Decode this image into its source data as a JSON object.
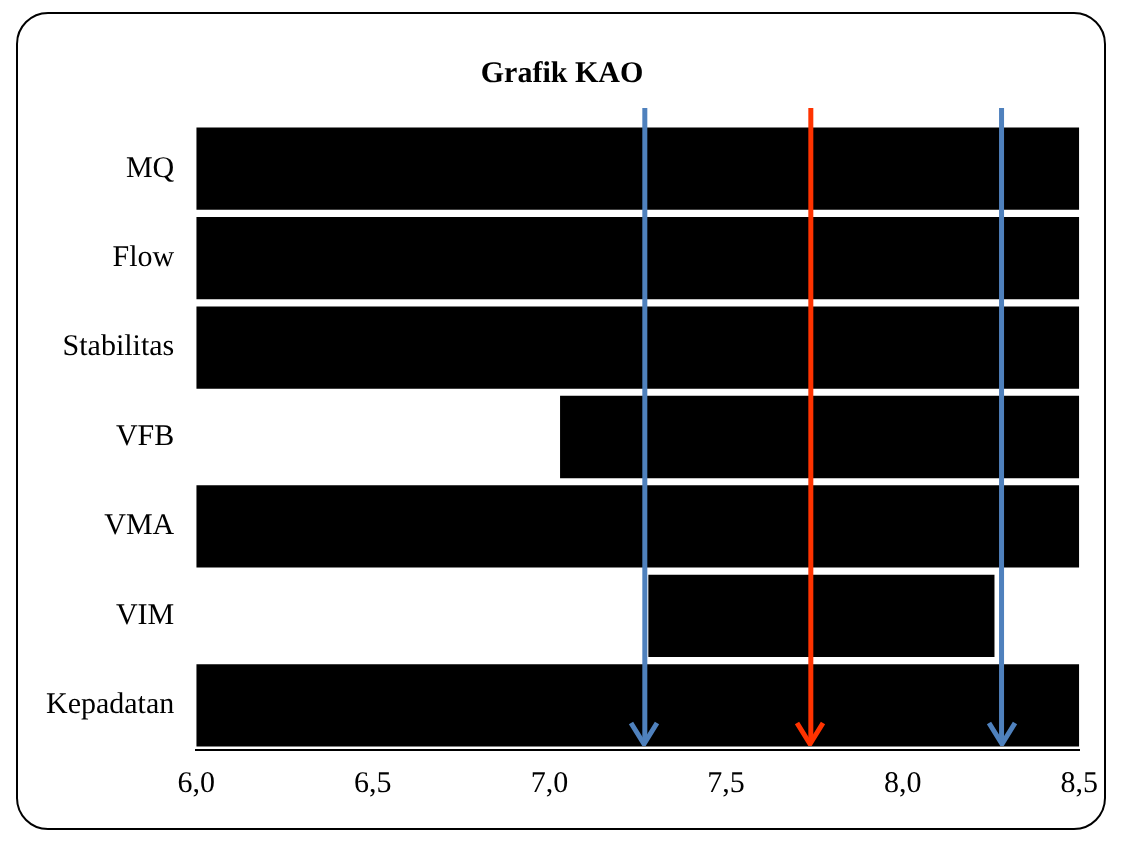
{
  "chart_data": {
    "type": "bar",
    "orientation": "horizontal",
    "title": "Grafik KAO",
    "categories": [
      "MQ",
      "Flow",
      "Stabilitas",
      "VFB",
      "VMA",
      "VIM",
      "Kepadatan"
    ],
    "base": [
      6.0,
      6.0,
      6.0,
      7.03,
      6.0,
      7.28,
      6.0
    ],
    "values": [
      2.5,
      2.5,
      2.5,
      1.47,
      2.5,
      0.98,
      2.5
    ],
    "color": "#000000",
    "xlim": [
      6.0,
      8.5
    ],
    "xticks": [
      {
        "value": 6.0,
        "label": "6,0"
      },
      {
        "value": 6.5,
        "label": "6,5"
      },
      {
        "value": 7.0,
        "label": "7,0"
      },
      {
        "value": 7.5,
        "label": "7,5"
      },
      {
        "value": 8.0,
        "label": "8,0"
      },
      {
        "value": 8.5,
        "label": "8,5"
      }
    ],
    "grid": false,
    "legend": false,
    "ref_lines": [
      {
        "axis": "x",
        "value": 7.27,
        "color": "#4f81bd"
      },
      {
        "axis": "x",
        "value": 7.74,
        "color": "#ff3300"
      },
      {
        "axis": "x",
        "value": 8.28,
        "color": "#4f81bd"
      }
    ]
  }
}
